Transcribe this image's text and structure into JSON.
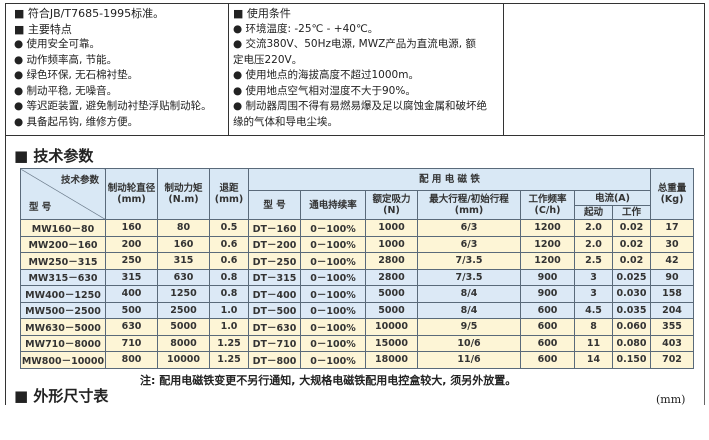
{
  "left_panel": {
    "lines": [
      "■ 符合JB/T7685-1995标准。",
      "■ 主要特点",
      "● 使用安全可靠。",
      "● 动作频率高, 节能。",
      "● 绿色环保, 无石棉衬垫。",
      "● 制动平稳, 无噪音。",
      "● 等迟距装置, 避免制动衬垫浮贴制动轮。",
      "● 具备起吊钩, 维修方便。"
    ]
  },
  "middle_panel": {
    "lines": [
      "■ 使用条件",
      "● 环境温度: -25℃ - +40℃。",
      "● 交流380V、50Hz电源, MWZ产品为直流电源, 额",
      "定电压220V。",
      "● 使用地点的海拔高度不超过1000m。",
      "● 使用地点空气相对湿度不大于90%。",
      "● 制动器周围不得有易燃易爆及足以腐蚀金属和破坏绝",
      "缘的气体和导电尘埃。"
    ]
  },
  "section1": "■ 技术参数",
  "table": {
    "corner_top": "技术参数",
    "corner_bottom": "型 号",
    "h_diameter": "制动轮直径(mm)",
    "h_torque": "制动力矩(N.m)",
    "h_retreat": "退距(mm)",
    "h_magnet": "配 用 电 磁 铁",
    "h_type": "型 号",
    "h_duty": "通电持续率",
    "h_force": "额定吸力(N)",
    "h_stroke": "最大行程/初始行程(mm)",
    "h_freq": "工作频率(C/h)",
    "h_current": "电流(A)",
    "h_start": "起动",
    "h_work": "工作",
    "h_weight": "总重量(Kg)",
    "rows": [
      [
        "MW160－80",
        "160",
        "80",
        "0.5",
        "DT－160",
        "0－100%",
        "1000",
        "6/3",
        "1200",
        "2.0",
        "0.02",
        "17"
      ],
      [
        "MW200－160",
        "200",
        "160",
        "0.6",
        "DT－200",
        "0－100%",
        "1000",
        "6/3",
        "1200",
        "2.0",
        "0.02",
        "30"
      ],
      [
        "MW250－315",
        "250",
        "315",
        "0.6",
        "DT－250",
        "0－100%",
        "2800",
        "7/3.5",
        "1200",
        "2.5",
        "0.02",
        "42"
      ],
      [
        "MW315－630",
        "315",
        "630",
        "0.8",
        "DT－315",
        "0－100%",
        "2800",
        "7/3.5",
        "900",
        "3",
        "0.025",
        "90"
      ],
      [
        "MW400－1250",
        "400",
        "1250",
        "0.8",
        "DT－400",
        "0－100%",
        "5000",
        "8/4",
        "900",
        "3",
        "0.030",
        "158"
      ],
      [
        "MW500－2500",
        "500",
        "2500",
        "1.0",
        "DT－500",
        "0－100%",
        "5000",
        "8/4",
        "600",
        "4.5",
        "0.035",
        "204"
      ],
      [
        "MW630－5000",
        "630",
        "5000",
        "1.0",
        "DT－630",
        "0－100%",
        "10000",
        "9/5",
        "600",
        "8",
        "0.060",
        "355"
      ],
      [
        "MW710－8000",
        "710",
        "8000",
        "1.25",
        "DT－710",
        "0－100%",
        "15000",
        "10/6",
        "600",
        "11",
        "0.080",
        "403"
      ],
      [
        "MW800－10000",
        "800",
        "10000",
        "1.25",
        "DT－800",
        "0－100%",
        "18000",
        "11/6",
        "600",
        "14",
        "0.150",
        "702"
      ]
    ],
    "row_colors": [
      "yellow",
      "yellow",
      "yellow",
      "blue",
      "blue",
      "blue",
      "yellow",
      "yellow",
      "yellow"
    ]
  },
  "note": "注: 配用电磁铁变更不另行通知, 大规格电磁铁配用电控盒较大, 须另外放置。",
  "section2": "■ 外形尺寸表",
  "unit": "(mm)",
  "colors": {
    "header": "#d9e8f5",
    "yellow_row": "#fdf5d6",
    "blue_row": "#dce9f6"
  }
}
